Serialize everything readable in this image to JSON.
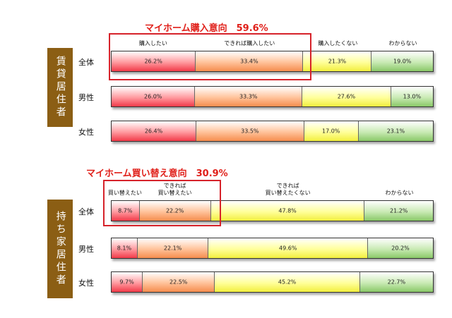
{
  "chart_data": [
    {
      "type": "stacked-bar",
      "title": "マイホーム購入意向　59.6%",
      "side_label": "賃貸居住者",
      "legend": [
        "購入したい",
        "できれば購入したい",
        "購入したくない",
        "わからない"
      ],
      "categories": [
        "全体",
        "男性",
        "女性"
      ],
      "values": [
        [
          26.2,
          33.4,
          21.3,
          19.0
        ],
        [
          26.0,
          33.3,
          27.6,
          13.0
        ],
        [
          26.4,
          33.5,
          17.0,
          23.1
        ]
      ],
      "value_labels": [
        [
          "26.2%",
          "33.4%",
          "21.3%",
          "19.0%"
        ],
        [
          "26.0%",
          "33.3%",
          "27.6%",
          "13.0%"
        ],
        [
          "26.4%",
          "33.5%",
          "17.0%",
          "23.1%"
        ]
      ]
    },
    {
      "type": "stacked-bar",
      "title": "マイホーム買い替え意向　30.9%",
      "side_label": "持ち家居住者",
      "legend": [
        "買い替えたい",
        "できれば\n買い替えたい",
        "できれば\n買い替えたくない",
        "わからない"
      ],
      "categories": [
        "全体",
        "男性",
        "女性"
      ],
      "values": [
        [
          8.7,
          22.2,
          47.8,
          21.2
        ],
        [
          8.1,
          22.1,
          49.6,
          20.2
        ],
        [
          9.7,
          22.5,
          45.2,
          22.7
        ]
      ],
      "value_labels": [
        [
          "8.7%",
          "22.2%",
          "47.8%",
          "21.2%"
        ],
        [
          "8.1%",
          "22.1%",
          "49.6%",
          "20.2%"
        ],
        [
          "9.7%",
          "22.5%",
          "45.2%",
          "22.7%"
        ]
      ]
    }
  ],
  "colors": [
    "#f23a49",
    "#f68d4e",
    "#f2ef3e",
    "#8ac868"
  ],
  "highlight_color": "#d6222a"
}
